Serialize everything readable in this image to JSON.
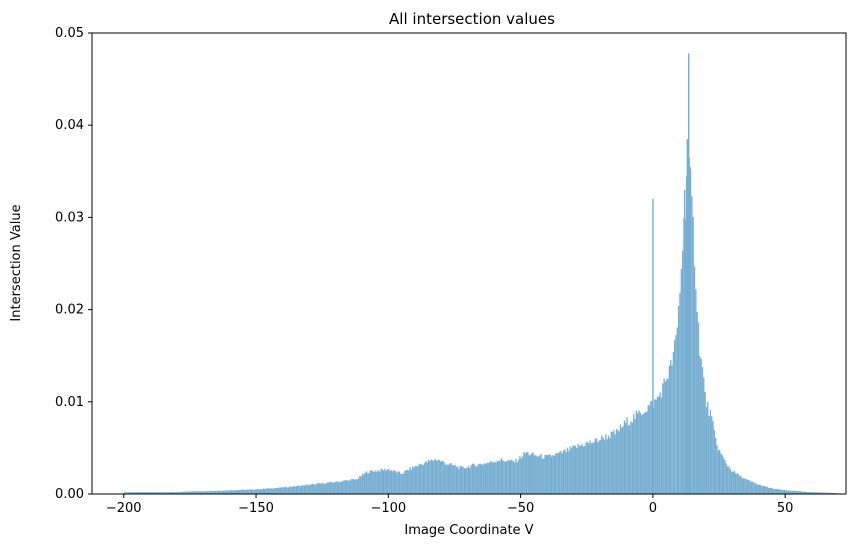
{
  "chart_data": {
    "type": "bar",
    "title": "All intersection values",
    "xlabel": "Image Coordinate V",
    "ylabel": "Intersection Value",
    "xlim": [
      -212,
      73
    ],
    "ylim": [
      0,
      0.05
    ],
    "xticks": [
      -200,
      -150,
      -100,
      -50,
      0,
      50
    ],
    "yticks": [
      0.0,
      0.01,
      0.02,
      0.03,
      0.04,
      0.05
    ],
    "xtick_labels": [
      "−200",
      "−150",
      "−100",
      "−50",
      "0",
      "50"
    ],
    "ytick_labels": [
      "0.00",
      "0.01",
      "0.02",
      "0.03",
      "0.04",
      "0.05"
    ],
    "bar_color": "#76aed2",
    "bin_width": 0.5,
    "series": [
      {
        "x_points": [
          -200,
          -190,
          -180,
          -175,
          -170,
          -160,
          -150,
          -140,
          -130,
          -120,
          -112,
          -108,
          -100,
          -95,
          -92,
          -88,
          -82,
          -78,
          -72,
          -68,
          -62,
          -58,
          -52,
          -48,
          -45,
          -40,
          -35,
          -30,
          -25,
          -22,
          -18,
          -14,
          -10,
          -6,
          -3,
          -1,
          1,
          3,
          5,
          7,
          9,
          10,
          11,
          12,
          13,
          14,
          15,
          16,
          17,
          18,
          19,
          20,
          22,
          24,
          26,
          28,
          30,
          35,
          40,
          45,
          50,
          55,
          60,
          65,
          70
        ],
        "y_points": [
          0.0002,
          0.0002,
          0.0002,
          0.0003,
          0.0003,
          0.0004,
          0.0005,
          0.0007,
          0.001,
          0.0013,
          0.0016,
          0.0024,
          0.0027,
          0.0022,
          0.0027,
          0.0032,
          0.0038,
          0.0033,
          0.0028,
          0.0031,
          0.0034,
          0.0037,
          0.0035,
          0.0045,
          0.0042,
          0.004,
          0.0044,
          0.005,
          0.0055,
          0.0057,
          0.0062,
          0.0066,
          0.0078,
          0.0085,
          0.0092,
          0.0096,
          0.01,
          0.011,
          0.0125,
          0.014,
          0.017,
          0.021,
          0.026,
          0.03,
          0.037,
          0.034,
          0.03,
          0.025,
          0.019,
          0.015,
          0.013,
          0.01,
          0.0085,
          0.0055,
          0.0042,
          0.0032,
          0.0025,
          0.0016,
          0.001,
          0.0006,
          0.0004,
          0.0003,
          0.0002,
          0.00015,
          0.0001
        ],
        "spikes": [
          {
            "x": 0,
            "y": 0.032
          },
          {
            "x": 13.5,
            "y": 0.0478
          },
          {
            "x": 13,
            "y": 0.0385
          },
          {
            "x": 14,
            "y": 0.0355
          },
          {
            "x": 12,
            "y": 0.033
          }
        ]
      }
    ]
  }
}
